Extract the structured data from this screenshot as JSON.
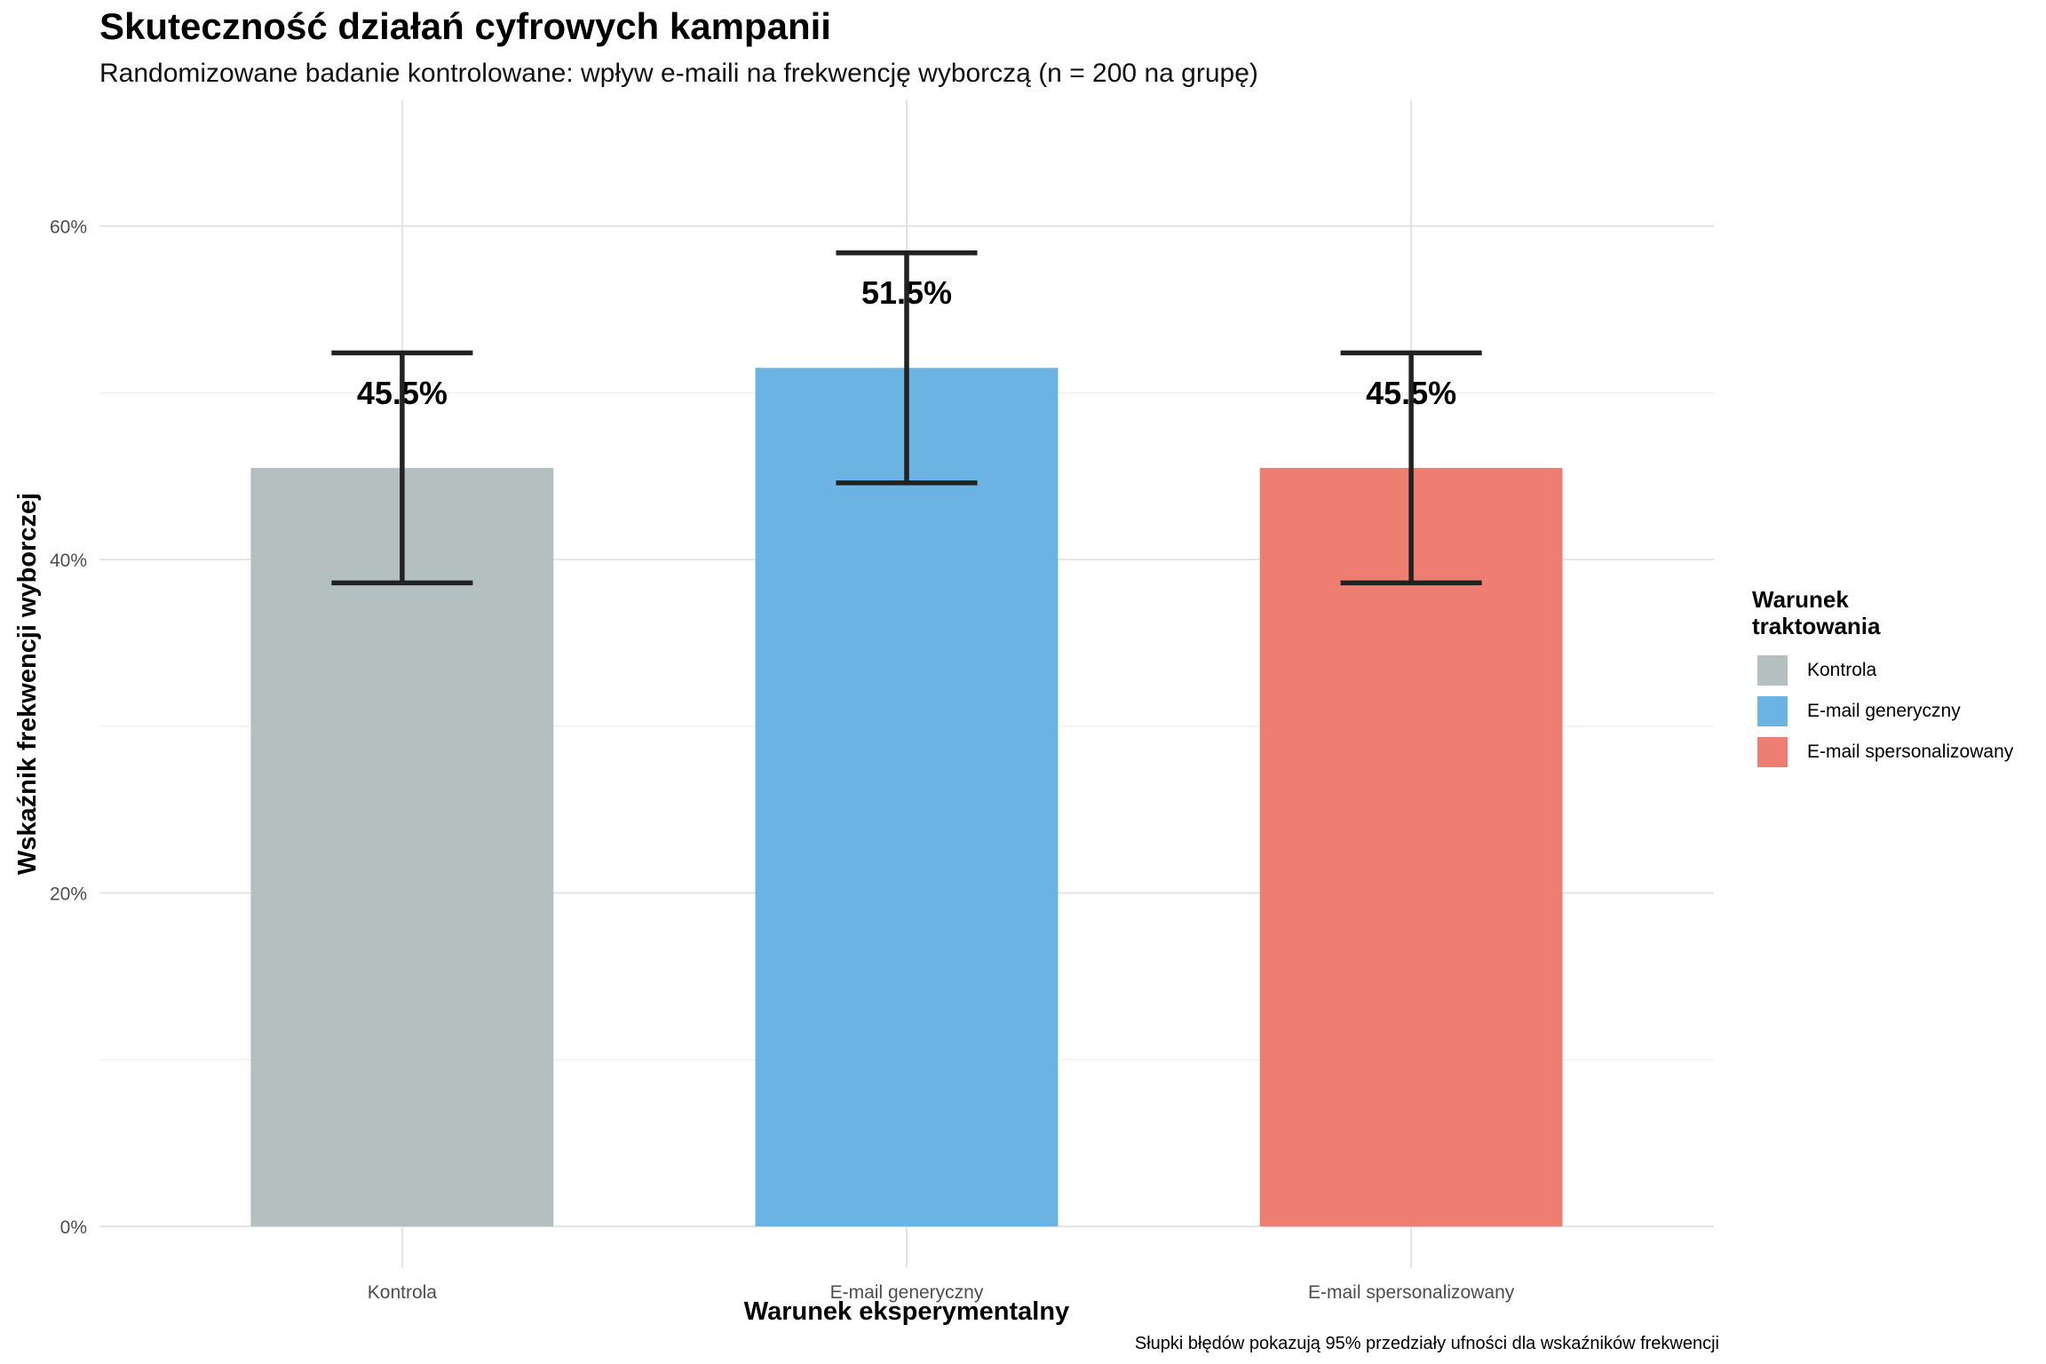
{
  "chart_data": {
    "type": "bar",
    "title": "Skuteczność działań cyfrowych kampanii",
    "subtitle": "Randomizowane badanie kontrolowane: wpływ e-maili na frekwencję wyborczą (n = 200 na grupę)",
    "xlabel": "Warunek eksperymentalny",
    "ylabel": "Wskaźnik frekwencji wyborczej",
    "caption": "Słupki błędów pokazują 95% przedziały ufności dla wskaźników frekwencji",
    "categories": [
      "Kontrola",
      "E-mail generyczny",
      "E-mail spersonalizowany"
    ],
    "values": [
      45.5,
      51.5,
      45.5
    ],
    "ci_lower": [
      38.6,
      44.6,
      38.6
    ],
    "ci_upper": [
      52.4,
      58.4,
      52.4
    ],
    "value_labels": [
      "45.5%",
      "51.5%",
      "45.5%"
    ],
    "colors": [
      "#b4bfbf",
      "#6bb3e3",
      "#ee7d72"
    ],
    "ylim": [
      -2.5,
      67.6
    ],
    "yticks": [
      0,
      20,
      40,
      60
    ],
    "ytick_labels": [
      "0%",
      "20%",
      "40%",
      "60%"
    ],
    "grid": true,
    "legend_title": "Warunek traktowania",
    "legend_position": "right"
  }
}
